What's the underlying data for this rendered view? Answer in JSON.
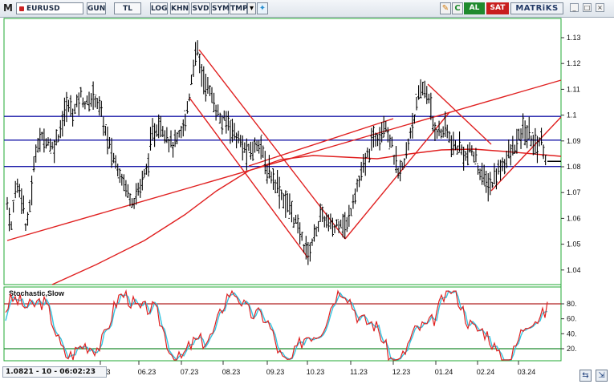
{
  "toolbar": {
    "menu_label": "M",
    "symbol": "EURUSD",
    "buttons": [
      "GUN",
      "TL",
      "LOG",
      "KHN",
      "SVD",
      "SYM",
      "TMP"
    ],
    "icons": [
      "edit-icon",
      "refresh-icon",
      "dropdown-icon",
      "twitter-icon"
    ],
    "al_label": "AL",
    "sat_label": "SAT",
    "brand": "MATRiKS"
  },
  "colors": {
    "price_bars": "#000000",
    "trend_red": "#e02020",
    "support_blue": "#1a1aa8",
    "stoch_k": "#e02020",
    "stoch_d": "#33c4e0",
    "overbought_line": "#b02020",
    "oversold_line": "#1f8a2e",
    "grid_line": "#22aa33"
  },
  "main_chart": {
    "price_levels": [
      "1.13",
      "1.12",
      "1.11",
      "1.1",
      "1.09",
      "1.08",
      "1.07",
      "1.06",
      "1.05",
      "1.04"
    ],
    "horizontal_levels": [
      1.0995,
      1.0903,
      1.0801
    ],
    "last_price_marker": 1.0821
  },
  "stochastic": {
    "title": "Stochastic,Slow",
    "levels": [
      "80.",
      "60.",
      "40.",
      "20."
    ],
    "overbought": 80,
    "oversold": 20
  },
  "x_axis": {
    "labels": [
      "3",
      "06.23",
      "07.23",
      "08.23",
      "09.23",
      "10.23",
      "11.23",
      "12.23",
      "01.24",
      "02.24",
      "03.24"
    ]
  },
  "status": {
    "readout": "1.0821 - 10 - 06:02:23"
  },
  "chart_data": {
    "type": "ohlc",
    "title": "EURUSD",
    "x": [
      "05.23",
      "06.23",
      "07.23",
      "08.23",
      "09.23",
      "10.23",
      "11.23",
      "12.23",
      "01.24",
      "02.24",
      "03.24"
    ],
    "close_approx": [
      1.0705,
      1.0905,
      1.124,
      1.091,
      1.07,
      1.048,
      1.088,
      1.104,
      1.085,
      1.072,
      1.092
    ],
    "ylim": [
      1.035,
      1.135
    ],
    "series": [
      {
        "name": "Stochastic,Slow",
        "values_approx": [
          55,
          80,
          30,
          85,
          20,
          60,
          15,
          75,
          25,
          85,
          20
        ]
      }
    ],
    "stoch_ylim": [
      0,
      100
    ]
  }
}
